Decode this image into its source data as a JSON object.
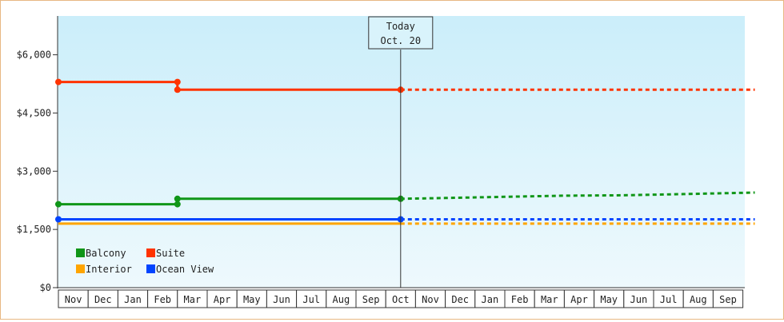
{
  "chart_data": {
    "type": "line",
    "ylim": [
      0,
      7000
    ],
    "y_ticks": [
      {
        "value": 0,
        "label": "$0"
      },
      {
        "value": 1500,
        "label": "$1,500"
      },
      {
        "value": 3000,
        "label": "$3,000"
      },
      {
        "value": 4500,
        "label": "$4,500"
      },
      {
        "value": 6000,
        "label": "$6,000"
      }
    ],
    "x_categories": [
      "Nov",
      "Dec",
      "Jan",
      "Feb",
      "Mar",
      "Apr",
      "May",
      "Jun",
      "Jul",
      "Aug",
      "Sep",
      "Oct",
      "Nov",
      "Dec",
      "Jan",
      "Feb",
      "Mar",
      "Apr",
      "May",
      "Jun",
      "Jul",
      "Aug",
      "Sep"
    ],
    "today_marker": {
      "line1": "Today",
      "line2": "Oct. 20",
      "month_index": 11.5
    },
    "grid": false,
    "legend": {
      "placement": "bottom-left"
    },
    "series": [
      {
        "name": "Suite",
        "color": "#ff3300",
        "solid": [
          [
            0,
            5300
          ],
          [
            4,
            5300
          ],
          [
            4,
            5100
          ],
          [
            11.5,
            5100
          ]
        ],
        "dotted": [
          [
            11.5,
            5100
          ],
          [
            23.4,
            5100
          ]
        ],
        "markers": [
          [
            0,
            5300
          ],
          [
            4,
            5300
          ],
          [
            4,
            5100
          ],
          [
            11.5,
            5100
          ]
        ]
      },
      {
        "name": "Balcony",
        "color": "#109618",
        "solid": [
          [
            0,
            2150
          ],
          [
            4,
            2150
          ],
          [
            4,
            2290
          ],
          [
            11.5,
            2290
          ]
        ],
        "dotted": [
          [
            11.5,
            2290
          ],
          [
            13,
            2310
          ],
          [
            15,
            2340
          ],
          [
            17,
            2370
          ],
          [
            19,
            2380
          ],
          [
            21,
            2410
          ],
          [
            23.4,
            2450
          ]
        ],
        "markers": [
          [
            0,
            2150
          ],
          [
            4,
            2150
          ],
          [
            4,
            2290
          ],
          [
            11.5,
            2290
          ]
        ]
      },
      {
        "name": "Ocean View",
        "color": "#0044ff",
        "solid": [
          [
            0,
            1760
          ],
          [
            11.5,
            1760
          ]
        ],
        "dotted": [
          [
            11.5,
            1760
          ],
          [
            23.4,
            1760
          ]
        ],
        "markers": [
          [
            0,
            1760
          ],
          [
            11.5,
            1760
          ]
        ]
      },
      {
        "name": "Interior",
        "color": "#ffa500",
        "solid": [
          [
            0,
            1650
          ],
          [
            11.5,
            1650
          ]
        ],
        "dotted": [
          [
            11.5,
            1650
          ],
          [
            23.4,
            1650
          ]
        ],
        "markers": []
      }
    ],
    "legend_order": [
      "Balcony",
      "Suite",
      "Interior",
      "Ocean View"
    ]
  }
}
